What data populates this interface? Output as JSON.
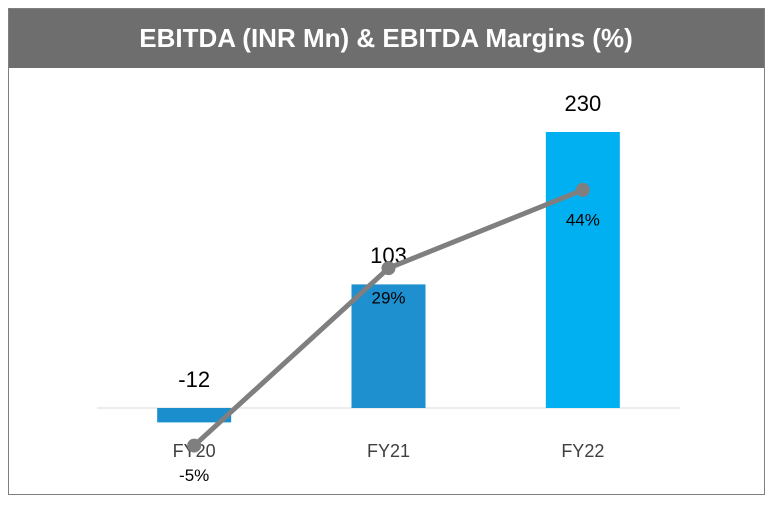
{
  "chart_data": {
    "type": "bar_line",
    "title": "EBITDA (INR Mn) & EBITDA Margins (%)",
    "categories": [
      "FY20",
      "FY21",
      "FY22"
    ],
    "series": [
      {
        "name": "EBITDA (INR Mn)",
        "type": "bar",
        "colors": [
          "#1b8fce",
          "#1e8fcf",
          "#00b0f0"
        ],
        "values": [
          -12,
          103,
          230
        ]
      },
      {
        "name": "EBITDA Margins (%)",
        "type": "line",
        "axis": "y2",
        "color": "#7f7f7f",
        "values": [
          -5,
          29,
          44
        ],
        "value_labels": [
          "-5%",
          "29%",
          "44%"
        ]
      }
    ],
    "ylim": [
      -40,
      260
    ],
    "y2lim": [
      -7,
      62
    ]
  }
}
